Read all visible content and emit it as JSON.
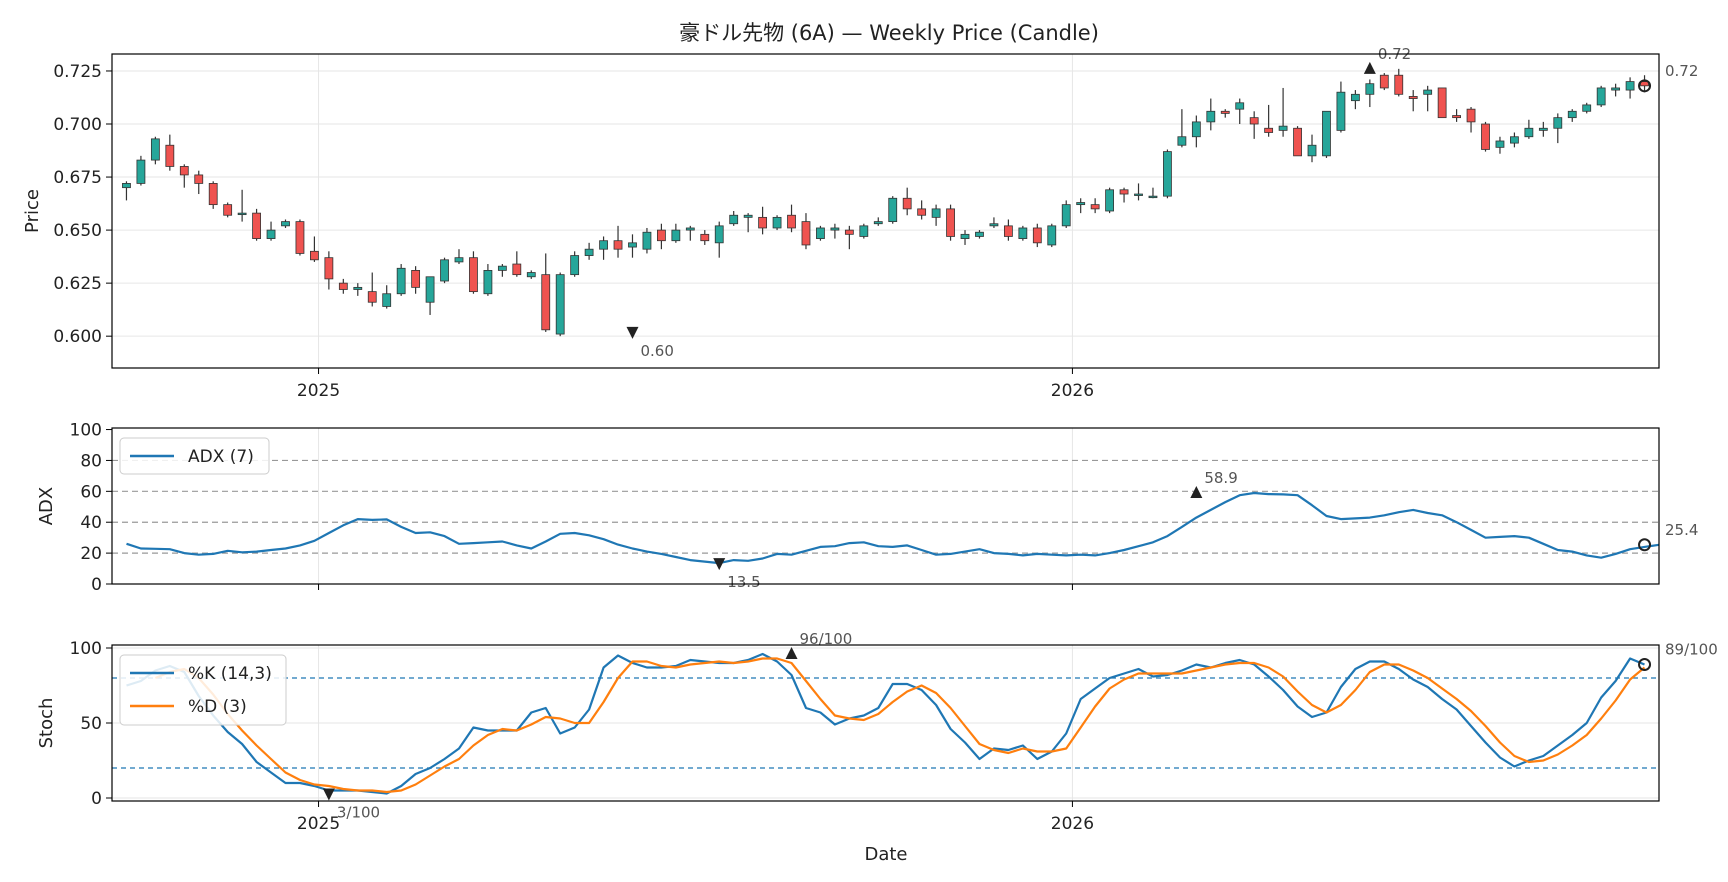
{
  "chart_data": {
    "type": "candlestick",
    "title": "豪ドル先物 (6A) — Weekly Price (Candle)",
    "x_tick_labels": [
      "2025",
      "2026"
    ],
    "x_tick_dates": [
      "2025-01-01",
      "2026-01-01"
    ],
    "xlim": [
      "2024-09-23",
      "2026-10-12"
    ],
    "xlabel": "Date",
    "colors": {
      "up": "#26a69a",
      "down": "#ef5350",
      "adx": "#1f77b4",
      "k": "#1f77b4",
      "d": "#ff7f0e"
    },
    "candles": {
      "start_date": "2024-09-30",
      "interval": "weekly",
      "ohlc": [
        [
          0.67,
          0.673,
          0.664,
          0.672
        ],
        [
          0.672,
          0.685,
          0.671,
          0.683
        ],
        [
          0.683,
          0.694,
          0.681,
          0.693
        ],
        [
          0.69,
          0.695,
          0.678,
          0.68
        ],
        [
          0.68,
          0.681,
          0.67,
          0.676
        ],
        [
          0.676,
          0.678,
          0.667,
          0.672
        ],
        [
          0.672,
          0.673,
          0.66,
          0.662
        ],
        [
          0.662,
          0.663,
          0.656,
          0.657
        ],
        [
          0.658,
          0.669,
          0.654,
          0.658
        ],
        [
          0.658,
          0.66,
          0.645,
          0.646
        ],
        [
          0.646,
          0.654,
          0.645,
          0.65
        ],
        [
          0.652,
          0.655,
          0.651,
          0.654
        ],
        [
          0.654,
          0.655,
          0.638,
          0.639
        ],
        [
          0.64,
          0.647,
          0.635,
          0.636
        ],
        [
          0.637,
          0.64,
          0.622,
          0.627
        ],
        [
          0.625,
          0.627,
          0.62,
          0.622
        ],
        [
          0.622,
          0.625,
          0.619,
          0.623
        ],
        [
          0.621,
          0.63,
          0.614,
          0.616
        ],
        [
          0.614,
          0.624,
          0.613,
          0.62
        ],
        [
          0.62,
          0.634,
          0.619,
          0.632
        ],
        [
          0.631,
          0.633,
          0.62,
          0.623
        ],
        [
          0.616,
          0.628,
          0.61,
          0.628
        ],
        [
          0.626,
          0.637,
          0.625,
          0.636
        ],
        [
          0.635,
          0.641,
          0.634,
          0.637
        ],
        [
          0.637,
          0.64,
          0.62,
          0.621
        ],
        [
          0.62,
          0.634,
          0.619,
          0.631
        ],
        [
          0.631,
          0.634,
          0.628,
          0.633
        ],
        [
          0.634,
          0.64,
          0.628,
          0.629
        ],
        [
          0.628,
          0.631,
          0.627,
          0.63
        ],
        [
          0.629,
          0.639,
          0.602,
          0.603
        ],
        [
          0.601,
          0.63,
          0.6,
          0.629
        ],
        [
          0.629,
          0.64,
          0.628,
          0.638
        ],
        [
          0.638,
          0.644,
          0.636,
          0.641
        ],
        [
          0.641,
          0.647,
          0.636,
          0.645
        ],
        [
          0.645,
          0.652,
          0.637,
          0.641
        ],
        [
          0.642,
          0.648,
          0.637,
          0.644
        ],
        [
          0.641,
          0.651,
          0.639,
          0.649
        ],
        [
          0.65,
          0.653,
          0.641,
          0.645
        ],
        [
          0.645,
          0.653,
          0.644,
          0.65
        ],
        [
          0.65,
          0.652,
          0.645,
          0.651
        ],
        [
          0.648,
          0.65,
          0.643,
          0.645
        ],
        [
          0.644,
          0.654,
          0.637,
          0.652
        ],
        [
          0.653,
          0.659,
          0.652,
          0.657
        ],
        [
          0.656,
          0.658,
          0.649,
          0.657
        ],
        [
          0.656,
          0.661,
          0.648,
          0.651
        ],
        [
          0.651,
          0.657,
          0.65,
          0.656
        ],
        [
          0.657,
          0.662,
          0.649,
          0.651
        ],
        [
          0.654,
          0.658,
          0.641,
          0.643
        ],
        [
          0.646,
          0.652,
          0.645,
          0.651
        ],
        [
          0.65,
          0.653,
          0.646,
          0.651
        ],
        [
          0.65,
          0.652,
          0.641,
          0.648
        ],
        [
          0.647,
          0.653,
          0.646,
          0.652
        ],
        [
          0.653,
          0.656,
          0.652,
          0.654
        ],
        [
          0.654,
          0.666,
          0.653,
          0.665
        ],
        [
          0.665,
          0.67,
          0.657,
          0.66
        ],
        [
          0.66,
          0.664,
          0.655,
          0.657
        ],
        [
          0.656,
          0.662,
          0.652,
          0.66
        ],
        [
          0.66,
          0.662,
          0.645,
          0.647
        ],
        [
          0.646,
          0.65,
          0.643,
          0.648
        ],
        [
          0.647,
          0.65,
          0.646,
          0.649
        ],
        [
          0.652,
          0.656,
          0.651,
          0.653
        ],
        [
          0.652,
          0.655,
          0.645,
          0.647
        ],
        [
          0.646,
          0.652,
          0.645,
          0.651
        ],
        [
          0.651,
          0.653,
          0.642,
          0.644
        ],
        [
          0.643,
          0.653,
          0.642,
          0.652
        ],
        [
          0.652,
          0.664,
          0.651,
          0.662
        ],
        [
          0.662,
          0.665,
          0.658,
          0.663
        ],
        [
          0.662,
          0.665,
          0.658,
          0.66
        ],
        [
          0.659,
          0.67,
          0.658,
          0.669
        ],
        [
          0.669,
          0.67,
          0.663,
          0.667
        ],
        [
          0.667,
          0.672,
          0.664,
          0.667
        ],
        [
          0.666,
          0.67,
          0.665,
          0.666
        ],
        [
          0.666,
          0.688,
          0.665,
          0.687
        ],
        [
          0.69,
          0.707,
          0.689,
          0.694
        ],
        [
          0.694,
          0.704,
          0.689,
          0.701
        ],
        [
          0.701,
          0.712,
          0.697,
          0.706
        ],
        [
          0.706,
          0.707,
          0.703,
          0.705
        ],
        [
          0.707,
          0.712,
          0.7,
          0.71
        ],
        [
          0.703,
          0.706,
          0.693,
          0.7
        ],
        [
          0.698,
          0.709,
          0.694,
          0.696
        ],
        [
          0.697,
          0.717,
          0.694,
          0.699
        ],
        [
          0.698,
          0.699,
          0.685,
          0.685
        ],
        [
          0.685,
          0.695,
          0.682,
          0.69
        ],
        [
          0.685,
          0.706,
          0.684,
          0.706
        ],
        [
          0.697,
          0.72,
          0.696,
          0.715
        ],
        [
          0.711,
          0.716,
          0.707,
          0.714
        ],
        [
          0.714,
          0.721,
          0.708,
          0.719
        ],
        [
          0.723,
          0.724,
          0.716,
          0.717
        ],
        [
          0.723,
          0.726,
          0.713,
          0.714
        ],
        [
          0.713,
          0.716,
          0.706,
          0.712
        ],
        [
          0.714,
          0.718,
          0.706,
          0.716
        ],
        [
          0.717,
          0.717,
          0.703,
          0.703
        ],
        [
          0.704,
          0.707,
          0.701,
          0.703
        ],
        [
          0.707,
          0.708,
          0.696,
          0.701
        ],
        [
          0.7,
          0.701,
          0.687,
          0.688
        ],
        [
          0.689,
          0.694,
          0.686,
          0.692
        ],
        [
          0.691,
          0.696,
          0.689,
          0.694
        ],
        [
          0.694,
          0.702,
          0.693,
          0.698
        ],
        [
          0.697,
          0.701,
          0.694,
          0.698
        ],
        [
          0.698,
          0.705,
          0.691,
          0.703
        ],
        [
          0.703,
          0.707,
          0.701,
          0.706
        ],
        [
          0.706,
          0.71,
          0.705,
          0.709
        ],
        [
          0.709,
          0.718,
          0.708,
          0.717
        ],
        [
          0.716,
          0.719,
          0.713,
          0.717
        ],
        [
          0.716,
          0.722,
          0.712,
          0.72
        ],
        [
          0.72,
          0.723,
          0.715,
          0.718
        ]
      ]
    },
    "price_panel": {
      "ylabel": "Price",
      "ylim": [
        0.585,
        0.733
      ],
      "yticks": [
        0.6,
        0.625,
        0.65,
        0.675,
        0.7,
        0.725
      ],
      "ytick_labels": [
        "0.600",
        "0.625",
        "0.650",
        "0.675",
        "0.700",
        "0.725"
      ],
      "annotations": [
        {
          "text": "0.60",
          "date": "2025-06-02",
          "value": 0.602,
          "marker": "down-triangle"
        },
        {
          "text": "0.72",
          "date": "2026-05-25",
          "value": 0.726,
          "marker": "up-triangle"
        },
        {
          "text": "0.72",
          "date": "2026-10-05",
          "value": 0.718,
          "marker": "circle"
        }
      ]
    },
    "adx_panel": {
      "ylabel": "ADX",
      "ylim": [
        0,
        101
      ],
      "yticks": [
        0,
        20,
        40,
        60,
        80,
        100
      ],
      "ytick_labels": [
        "0",
        "20",
        "40",
        "60",
        "80",
        "100"
      ],
      "hlines": [
        20,
        40,
        60,
        80
      ],
      "legend": [
        "ADX (7)"
      ],
      "legend_position": "top-left",
      "series": [
        {
          "name": "ADX (7)",
          "values": [
            26.0,
            23.0,
            22.8,
            22.5,
            20.0,
            19.0,
            19.5,
            21.5,
            20.5,
            21.0,
            22.0,
            23.0,
            25.0,
            28.0,
            33.0,
            38.0,
            42.0,
            41.5,
            41.8,
            37.0,
            33.0,
            33.5,
            31.0,
            26.0,
            26.5,
            27.0,
            27.5,
            25.0,
            23.0,
            27.5,
            32.5,
            33.0,
            31.5,
            29.0,
            25.5,
            23.0,
            21.0,
            19.5,
            17.5,
            15.5,
            14.5,
            13.5,
            15.5,
            15.0,
            16.5,
            19.5,
            19.0,
            21.5,
            24.0,
            24.5,
            26.5,
            27.0,
            24.5,
            24.0,
            25.0,
            22.0,
            19.0,
            19.5,
            21.0,
            22.5,
            20.0,
            19.5,
            18.5,
            19.5,
            19.0,
            18.5,
            19.0,
            18.5,
            20.0,
            22.0,
            24.5,
            27.0,
            31.0,
            37.0,
            43.0,
            48.0,
            53.0,
            57.5,
            58.9,
            58.2,
            58.0,
            57.5,
            51.0,
            44.0,
            42.0,
            42.5,
            43.0,
            44.5,
            46.5,
            48.0,
            46.0,
            44.5,
            40.0,
            35.0,
            30.0,
            30.5,
            31.0,
            30.0,
            26.0,
            22.0,
            21.0,
            18.5,
            17.0,
            19.5,
            22.5,
            24.0,
            25.4
          ]
        }
      ],
      "annotations": [
        {
          "text": "58.9",
          "date": "2026-03-02",
          "value": 58.9,
          "marker": "up-triangle"
        },
        {
          "text": "13.5",
          "date": "2025-07-14",
          "value": 13.5,
          "marker": "down-triangle"
        },
        {
          "text": "25.4",
          "date": "2026-10-05",
          "value": 25.4,
          "marker": "circle"
        }
      ]
    },
    "stoch_panel": {
      "ylabel": "Stoch",
      "ylim": [
        -2,
        102
      ],
      "yticks": [
        0,
        50,
        100
      ],
      "ytick_labels": [
        "0",
        "50",
        "100"
      ],
      "hlines": [
        20,
        80
      ],
      "legend": [
        "%K (14,3)",
        "%D (3)"
      ],
      "legend_position": "top-left",
      "series": [
        {
          "name": "%K (14,3)",
          "values": [
            75,
            78,
            85,
            88,
            84,
            68,
            55,
            44,
            36,
            24,
            17,
            10,
            10,
            8,
            5,
            5,
            5,
            4,
            3,
            8,
            16,
            20,
            26,
            33,
            47,
            45,
            45,
            45,
            57,
            60,
            43,
            47,
            59,
            87,
            95,
            90,
            87,
            87,
            88,
            92,
            91,
            90,
            90,
            92,
            96,
            91,
            82,
            60,
            57,
            49,
            53,
            55,
            60,
            76,
            76,
            72,
            62,
            46,
            37,
            26,
            33,
            32,
            35,
            26,
            31,
            43,
            66,
            73,
            80,
            83,
            86,
            81,
            82,
            85,
            89,
            87,
            90,
            92,
            89,
            81,
            72,
            61,
            54,
            57,
            74,
            86,
            91,
            91,
            86,
            79,
            74,
            66,
            59,
            48,
            37,
            27,
            21,
            25,
            28,
            35,
            42,
            50,
            67,
            78,
            93,
            89
          ]
        },
        {
          "name": "%D (3)",
          "values": [
            null,
            null,
            80,
            84,
            86,
            80,
            69,
            56,
            45,
            35,
            26,
            17,
            12,
            9,
            8,
            6,
            5,
            5,
            4,
            5,
            9,
            15,
            21,
            26,
            35,
            42,
            46,
            45,
            49,
            54,
            53,
            50,
            50,
            64,
            80,
            91,
            91,
            88,
            87,
            89,
            90,
            91,
            90,
            91,
            93,
            93,
            90,
            78,
            66,
            55,
            53,
            52,
            56,
            64,
            71,
            75,
            70,
            60,
            48,
            36,
            32,
            30,
            33,
            31,
            31,
            33,
            47,
            61,
            73,
            79,
            83,
            83,
            83,
            83,
            85,
            87,
            89,
            90,
            90,
            87,
            81,
            71,
            62,
            57,
            62,
            72,
            84,
            89,
            89,
            85,
            80,
            73,
            66,
            58,
            48,
            37,
            28,
            24,
            25,
            29,
            35,
            42,
            53,
            65,
            79,
            87
          ]
        }
      ],
      "annotations": [
        {
          "text": "96/100",
          "date": "2025-08-18",
          "value": 96,
          "marker": "up-triangle"
        },
        {
          "text": "3/100",
          "date": "2025-01-06",
          "value": 3,
          "marker": "down-triangle"
        },
        {
          "text": "89/100",
          "date": "2026-10-05",
          "value": 89,
          "marker": "circle"
        }
      ]
    }
  }
}
